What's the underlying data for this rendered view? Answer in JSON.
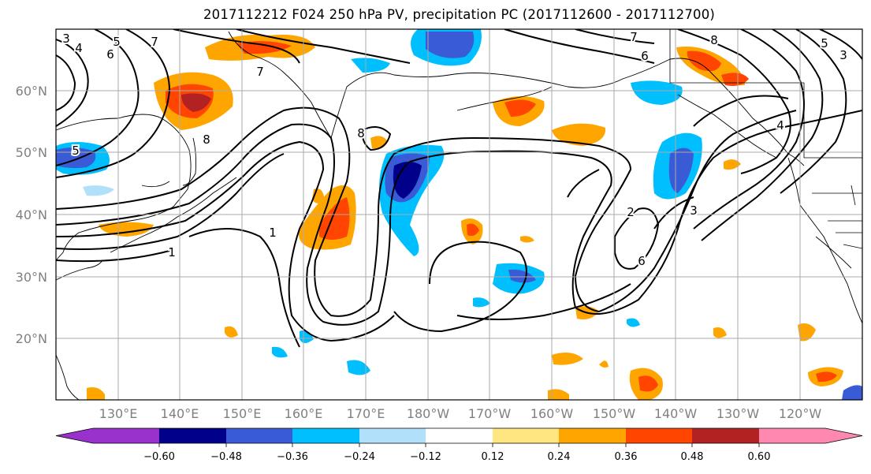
{
  "title": "2017112212 F024 250 hPa PV, precipitation PC (2017112600 - 2017112700)",
  "map": {
    "lat_labels": [
      "60°N",
      "50°N",
      "40°N",
      "30°N",
      "20°N"
    ],
    "lon_labels": [
      "130°E",
      "140°E",
      "150°E",
      "160°E",
      "170°E",
      "180°W",
      "170°W",
      "160°W",
      "150°W",
      "140°W",
      "130°W",
      "120°W"
    ],
    "contour_labels": [
      "3",
      "4",
      "5",
      "6",
      "7",
      "7",
      "6",
      "7",
      "8",
      "5",
      "3",
      "5",
      "8",
      "8",
      "1",
      "1",
      "2",
      "6",
      "4",
      "3"
    ]
  },
  "colorbar": {
    "tick_labels": [
      "−0.60",
      "−0.48",
      "−0.36",
      "−0.24",
      "−0.12",
      "0.12",
      "0.24",
      "0.36",
      "0.48",
      "0.60"
    ],
    "colors": [
      "#9932cc",
      "#00008b",
      "#3a5bd6",
      "#00bfff",
      "#b0e0fa",
      "#ffffff",
      "#ffe680",
      "#ffa500",
      "#ff4500",
      "#b22222",
      "#ff88b0"
    ]
  }
}
